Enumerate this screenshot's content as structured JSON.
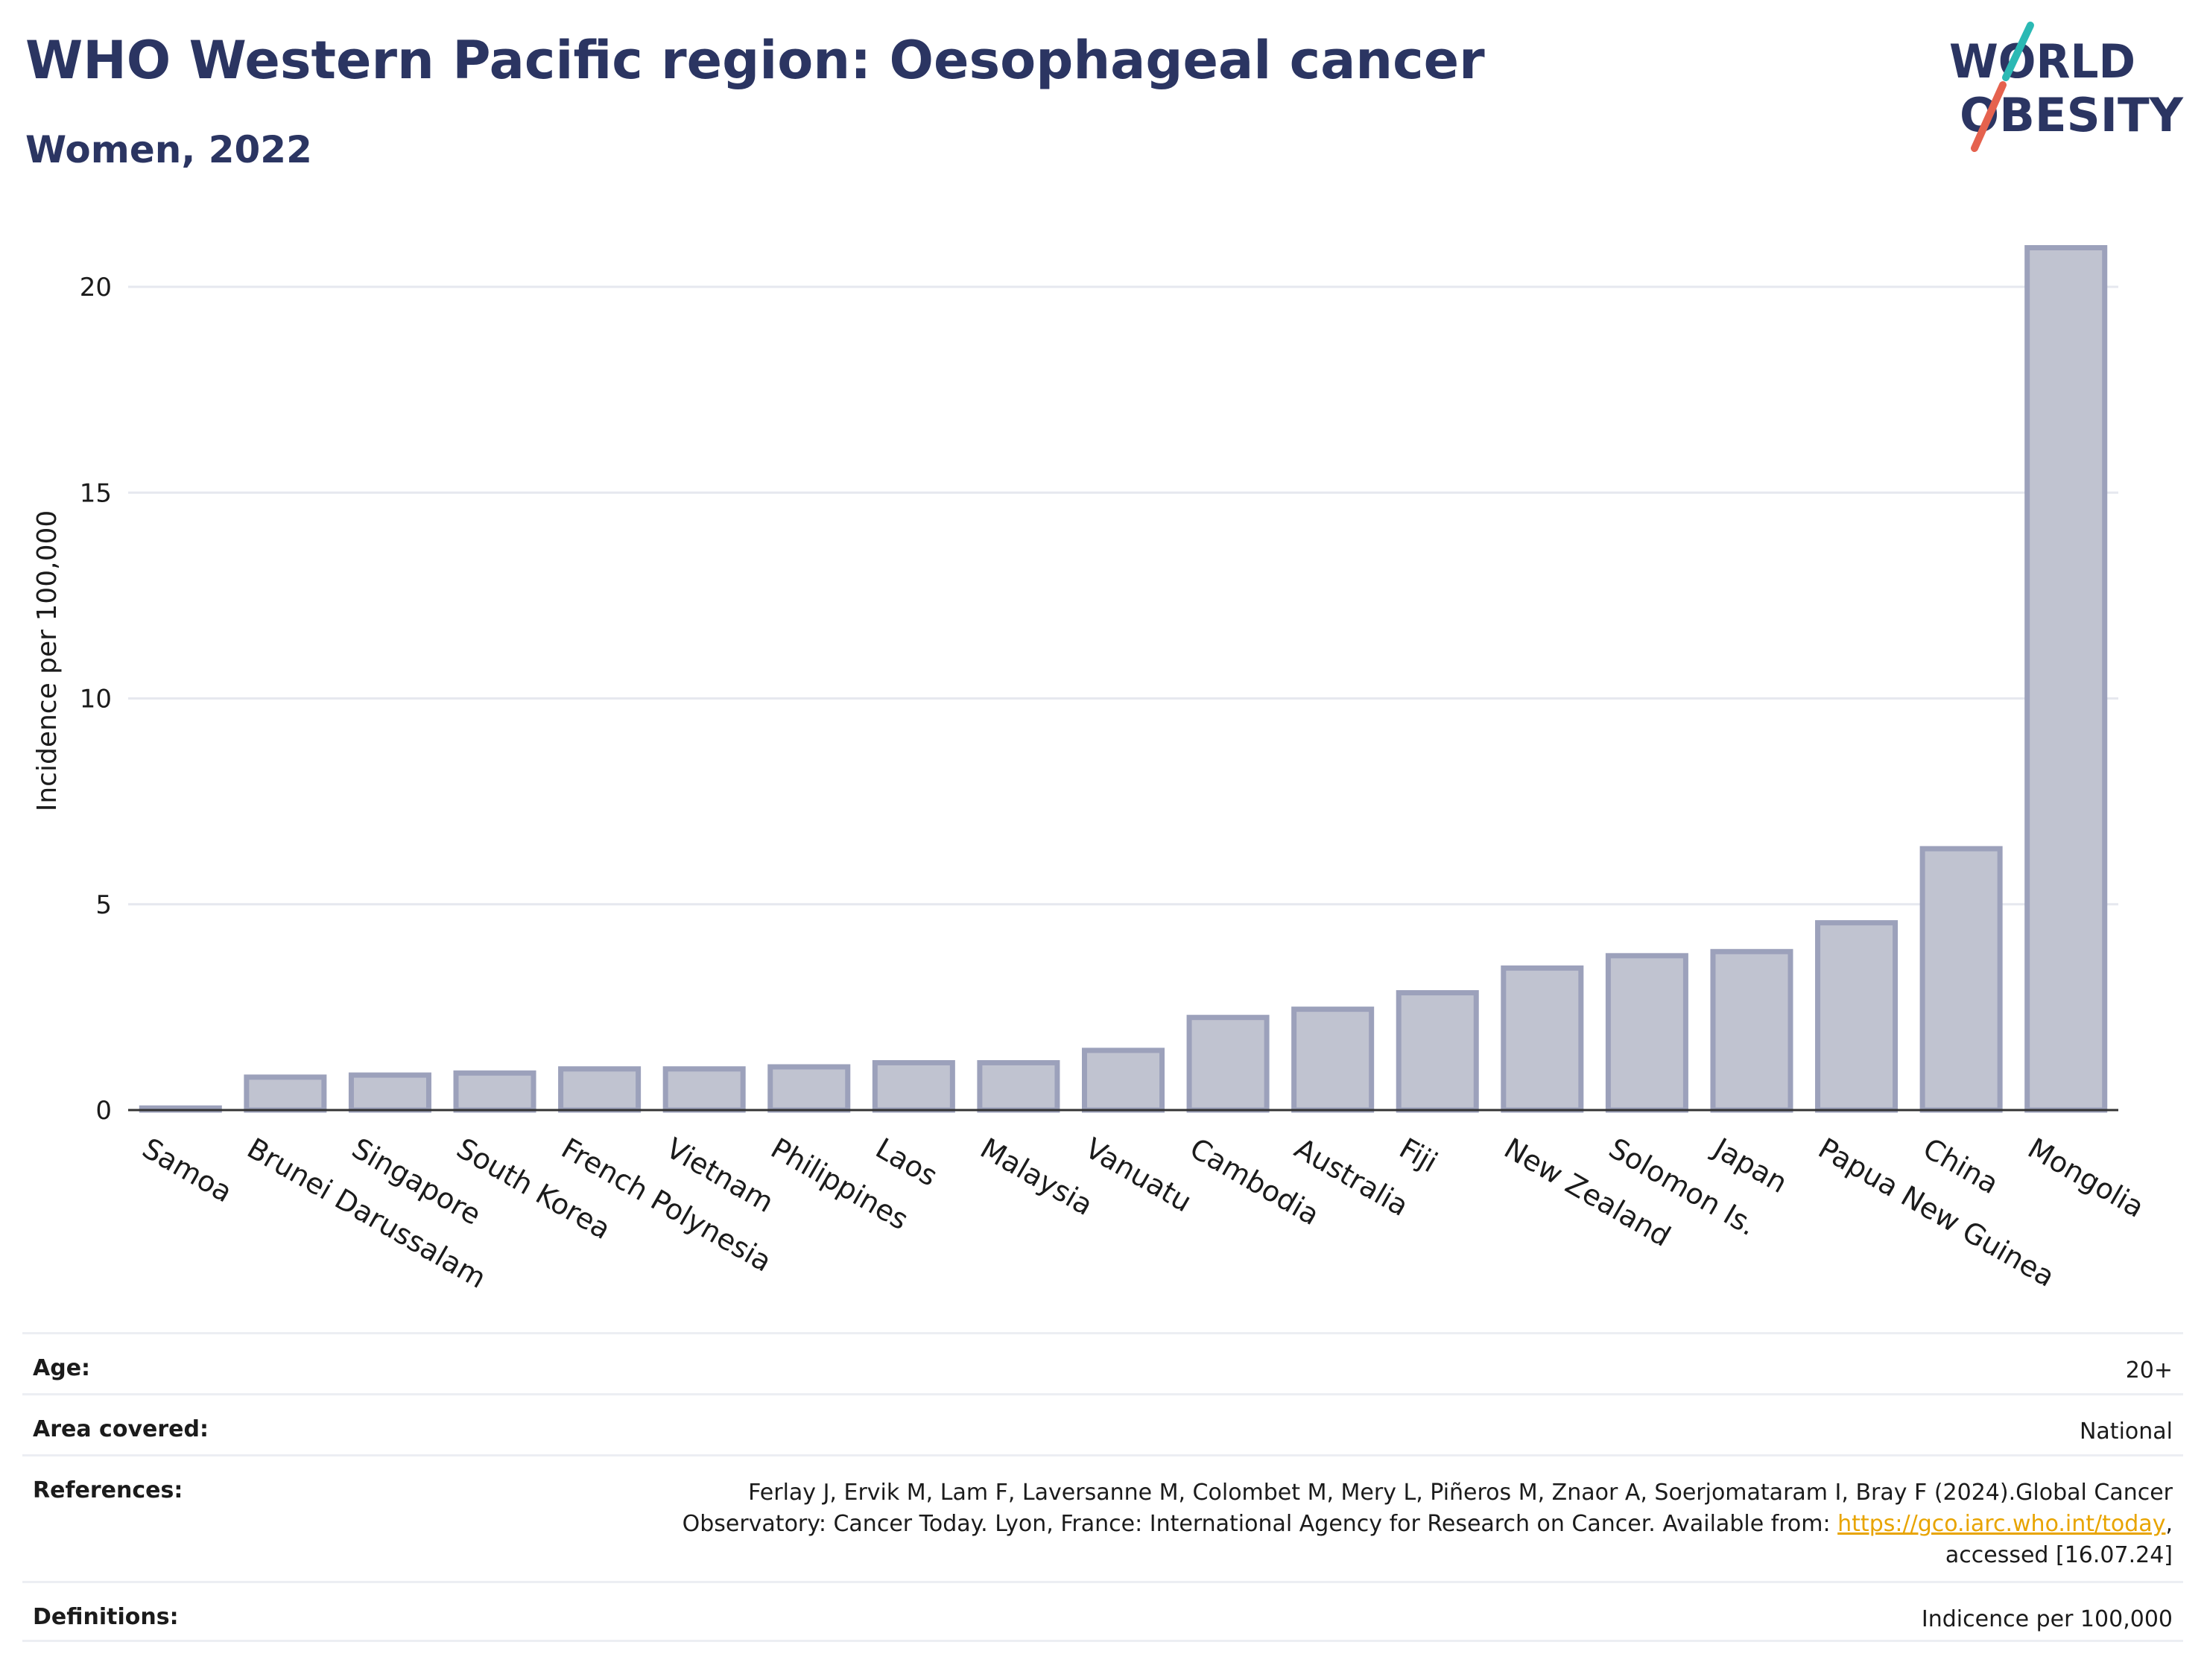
{
  "header": {
    "title": "WHO Western Pacific region: Oesophageal cancer",
    "subtitle": "Women, 2022"
  },
  "logo": {
    "line1": "WORLD",
    "line2": "OBESITY",
    "text_color": "#2b3562",
    "slash_colors": [
      "#2bb9b4",
      "#e5624e"
    ]
  },
  "chart_data": {
    "type": "bar",
    "title": "WHO Western Pacific region: Oesophageal cancer",
    "subtitle": "Women, 2022",
    "xlabel": "",
    "ylabel": "Incidence per 100,000",
    "ylim": [
      0,
      22
    ],
    "yticks": [
      0,
      5,
      10,
      15,
      20
    ],
    "grid": true,
    "categories": [
      "Samoa",
      "Brunei Darussalam",
      "Singapore",
      "South Korea",
      "French Polynesia",
      "Vietnam",
      "Philippines",
      "Laos",
      "Malaysia",
      "Vanuatu",
      "Cambodia",
      "Australia",
      "Fiji",
      "New Zealand",
      "Solomon Is.",
      "Japan",
      "Papua New Guinea",
      "China",
      "Mongolia"
    ],
    "values": [
      0.05,
      0.8,
      0.85,
      0.9,
      1.0,
      1.0,
      1.05,
      1.15,
      1.15,
      1.45,
      2.25,
      2.45,
      2.85,
      3.45,
      3.75,
      3.85,
      4.55,
      6.35,
      20.95
    ],
    "bar_fill": "#c0c3d0",
    "bar_stroke": "#9ca1bb"
  },
  "info": {
    "age_label": "Age:",
    "age_value": "20+",
    "area_label": "Area covered:",
    "area_value": "National",
    "references_label": "References:",
    "references_line1": "Ferlay J, Ervik M, Lam F, Laversanne M, Colombet M, Mery L, Piñeros M, Znaor A, Soerjomataram I, Bray F (2024).Global Cancer",
    "references_line2_prefix": "Observatory: Cancer Today. Lyon, France: International Agency for Research on Cancer. Available from: ",
    "references_link": "https://gco.iarc.who.int/today",
    "references_line2_suffix": ",",
    "references_line3": "accessed [16.07.24]",
    "definitions_label": "Definitions:",
    "definitions_value": "Indicence per 100,000"
  }
}
